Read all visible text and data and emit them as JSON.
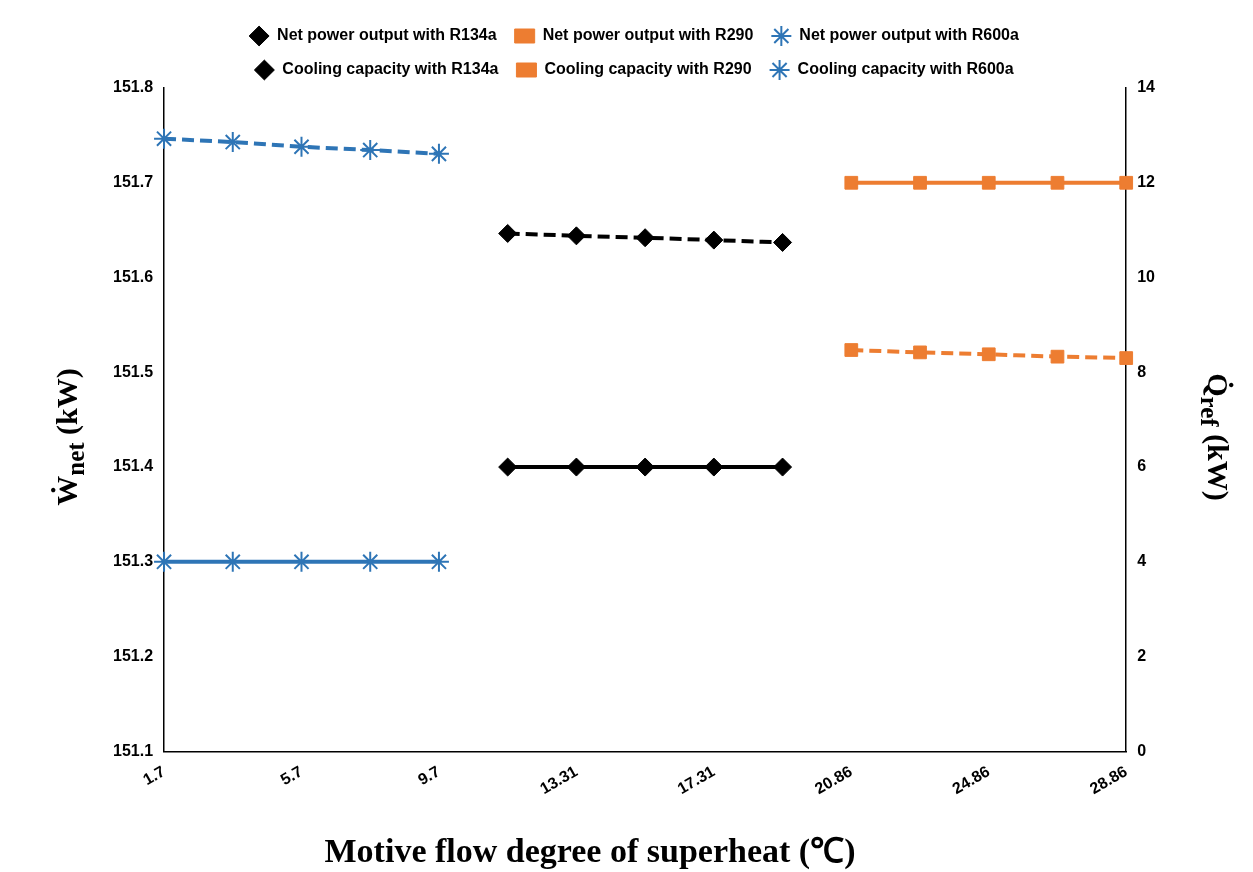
{
  "chart_data": {
    "type": "line",
    "xlabel": "Motive flow degree of superheat (℃)",
    "ylabel": "Ẇ$_{net}$ (kW)",
    "y2label": "Q̇$_{ref}$ (kW)",
    "categories": [
      "1.7",
      null,
      "5.7",
      null,
      "9.7",
      null,
      "13.31",
      null,
      "17.31",
      null,
      "20.86",
      null,
      "24.86",
      null,
      "28.86"
    ],
    "series": [
      {
        "name": "Net power output with R134a",
        "color": "#000000",
        "marker": "diamond",
        "line_style": "solid",
        "values": [
          null,
          null,
          null,
          null,
          null,
          151.4,
          151.4,
          151.4,
          151.4,
          151.4,
          null,
          null,
          null,
          null,
          null
        ]
      },
      {
        "name": "Net power output with R290",
        "color": "#ed7d31",
        "marker": "square",
        "line_style": "solid",
        "values": [
          null,
          null,
          null,
          null,
          null,
          null,
          null,
          null,
          null,
          null,
          151.7,
          151.7,
          151.7,
          151.7,
          151.7
        ]
      },
      {
        "name": "Net power output with R600a",
        "color": "#2e75b6",
        "marker": "cross",
        "line_style": "solid",
        "values": [
          151.3,
          151.3,
          151.3,
          151.3,
          151.3,
          null,
          null,
          null,
          null,
          null,
          null,
          null,
          null,
          null,
          null
        ]
      },
      {
        "name": "Cooling capacity with R134a",
        "color": "#000000",
        "marker": "diamond",
        "line_style": "dashed",
        "axis": "y2",
        "values": [
          null,
          null,
          null,
          null,
          null,
          10.93,
          10.88,
          10.84,
          10.79,
          10.74,
          null,
          null,
          null,
          null,
          null
        ]
      },
      {
        "name": "Cooling capacity with R290",
        "color": "#ed7d31",
        "marker": "square",
        "line_style": "dashed",
        "axis": "y2",
        "values": [
          null,
          null,
          null,
          null,
          null,
          null,
          null,
          null,
          null,
          null,
          8.47,
          8.42,
          8.38,
          8.33,
          8.3
        ]
      },
      {
        "name": "Cooling capacity with R600a",
        "color": "#2e75b6",
        "marker": "cross",
        "line_style": "dashed",
        "axis": "y2",
        "values": [
          12.93,
          12.86,
          12.76,
          12.69,
          12.61,
          null,
          null,
          null,
          null,
          null,
          null,
          null,
          null,
          null,
          null
        ]
      }
    ],
    "ylim": [
      151.1,
      151.8
    ],
    "yticks": [
      151.1,
      151.2,
      151.3,
      151.4,
      151.5,
      151.6,
      151.7,
      151.8
    ],
    "y2lim": [
      0,
      14
    ],
    "y2ticks": [
      0,
      2,
      4,
      6,
      8,
      10,
      12,
      14
    ],
    "grid": false,
    "legend": "top"
  }
}
